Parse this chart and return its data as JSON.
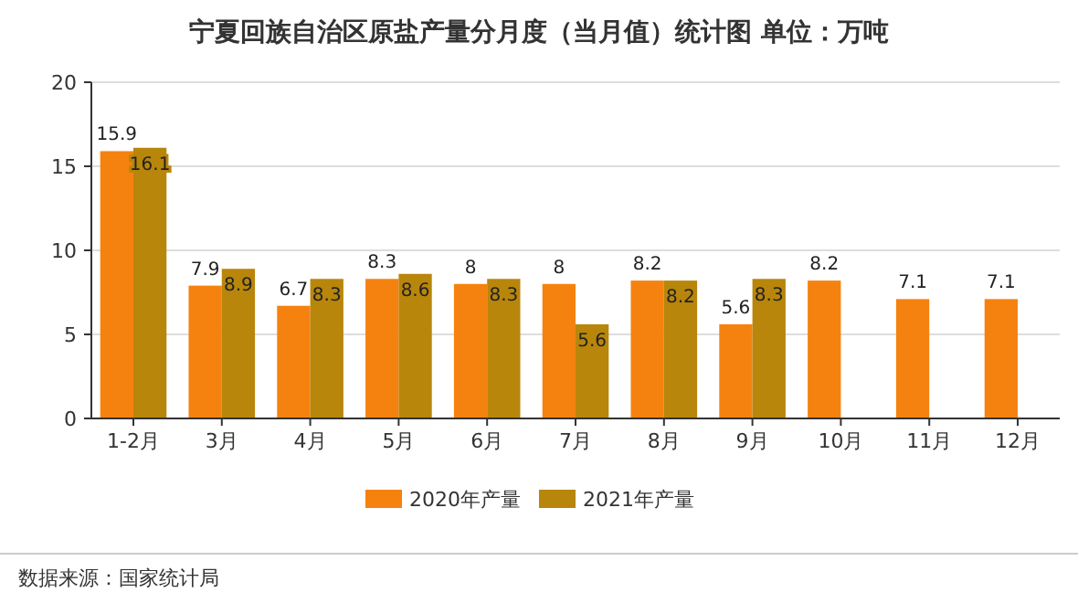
{
  "chart_data": {
    "type": "bar",
    "title": "宁夏回族自治区原盐产量分月度（当月值）统计图 单位：万吨",
    "categories": [
      "1-2月",
      "3月",
      "4月",
      "5月",
      "6月",
      "7月",
      "8月",
      "9月",
      "10月",
      "11月",
      "12月"
    ],
    "series": [
      {
        "name": "2020年产量",
        "color": "#f5820f",
        "values": [
          15.9,
          7.9,
          6.7,
          8.3,
          8,
          8,
          8.2,
          5.6,
          8.2,
          7.1,
          7.1
        ]
      },
      {
        "name": "2021年产量",
        "color": "#b8860b",
        "values": [
          16.1,
          8.9,
          8.3,
          8.6,
          8.3,
          5.6,
          8.2,
          8.3,
          null,
          null,
          null
        ]
      }
    ],
    "ylim": [
      0,
      20
    ],
    "yticks": [
      0,
      5,
      10,
      15,
      20
    ],
    "grid": "y",
    "legend": "bottom",
    "data_labels": true,
    "annotations": [
      "数据来源：国家统计局"
    ]
  }
}
